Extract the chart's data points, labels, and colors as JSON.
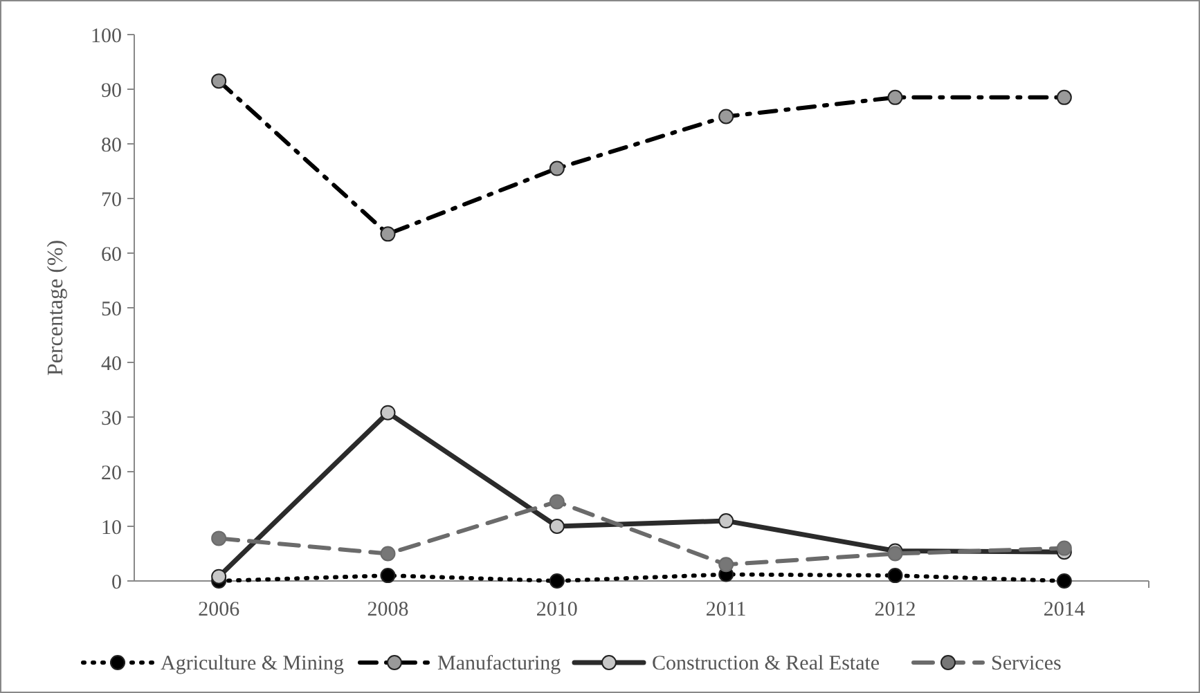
{
  "chart_data": {
    "type": "line",
    "ylabel": "Percentage (%)",
    "categories": [
      "2006",
      "2008",
      "2010",
      "2011",
      "2012",
      "2014"
    ],
    "ylim": [
      0,
      100
    ],
    "yticks": [
      0,
      10,
      20,
      30,
      40,
      50,
      60,
      70,
      80,
      90,
      100
    ],
    "grid": false,
    "legend": "bottom",
    "marker": "circle",
    "series": [
      {
        "name": "Agriculture & Mining",
        "color": "#000000",
        "line_style": "dotted",
        "values": [
          0,
          1,
          0,
          1.2,
          1,
          0
        ]
      },
      {
        "name": "Manufacturing",
        "color": "#000000",
        "line_style": "dashed",
        "values": [
          91.5,
          63.5,
          75.5,
          85,
          88.5,
          88.5
        ]
      },
      {
        "name": "Construction & Real Estate",
        "color": "#2b2b2b",
        "line_style": "solid",
        "values": [
          0.8,
          30.8,
          10,
          11,
          5.5,
          5.3
        ]
      },
      {
        "name": "Services",
        "color": "#6b6b6b",
        "line_style": "dashed",
        "values": [
          7.8,
          5,
          14.5,
          3,
          5,
          6
        ]
      }
    ]
  }
}
